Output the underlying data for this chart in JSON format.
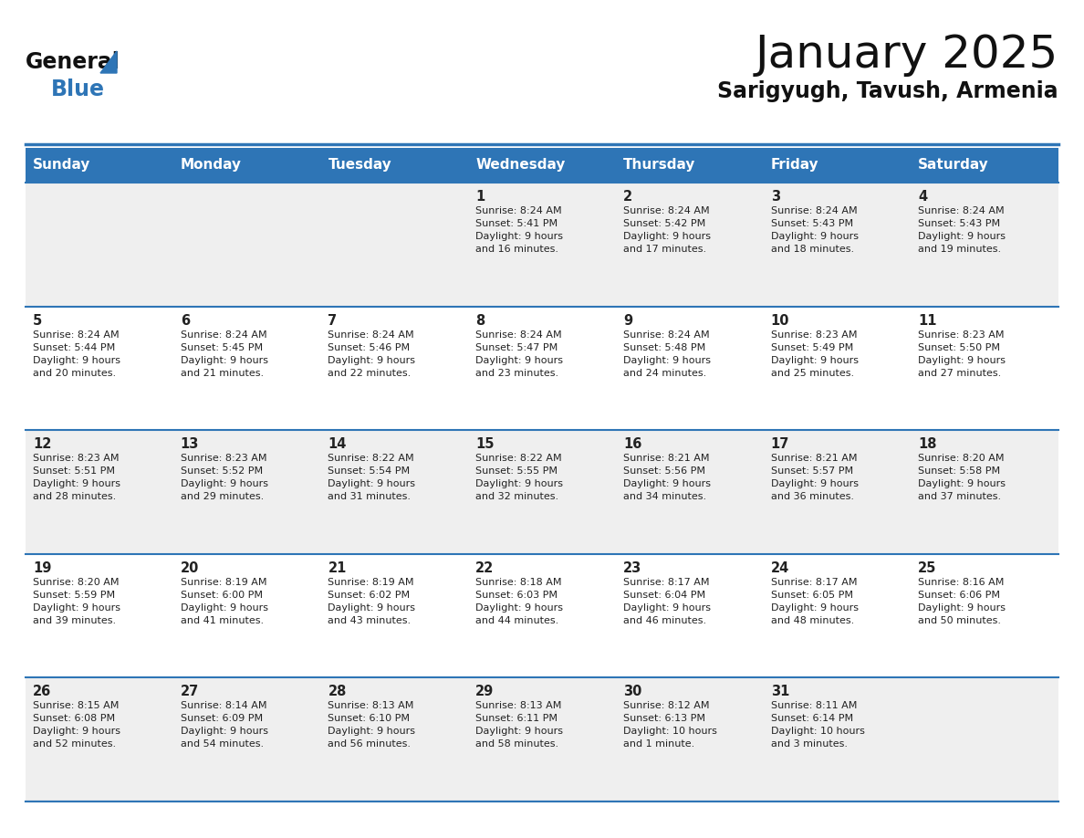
{
  "title": "January 2025",
  "subtitle": "Sarigyugh, Tavush, Armenia",
  "header_bg_color": "#2E75B6",
  "header_text_color": "#FFFFFF",
  "row_colors": [
    "#EFEFEF",
    "#FFFFFF"
  ],
  "text_color": "#222222",
  "day_headers": [
    "Sunday",
    "Monday",
    "Tuesday",
    "Wednesday",
    "Thursday",
    "Friday",
    "Saturday"
  ],
  "weeks": [
    [
      {
        "day": "",
        "info": ""
      },
      {
        "day": "",
        "info": ""
      },
      {
        "day": "",
        "info": ""
      },
      {
        "day": "1",
        "info": "Sunrise: 8:24 AM\nSunset: 5:41 PM\nDaylight: 9 hours\nand 16 minutes."
      },
      {
        "day": "2",
        "info": "Sunrise: 8:24 AM\nSunset: 5:42 PM\nDaylight: 9 hours\nand 17 minutes."
      },
      {
        "day": "3",
        "info": "Sunrise: 8:24 AM\nSunset: 5:43 PM\nDaylight: 9 hours\nand 18 minutes."
      },
      {
        "day": "4",
        "info": "Sunrise: 8:24 AM\nSunset: 5:43 PM\nDaylight: 9 hours\nand 19 minutes."
      }
    ],
    [
      {
        "day": "5",
        "info": "Sunrise: 8:24 AM\nSunset: 5:44 PM\nDaylight: 9 hours\nand 20 minutes."
      },
      {
        "day": "6",
        "info": "Sunrise: 8:24 AM\nSunset: 5:45 PM\nDaylight: 9 hours\nand 21 minutes."
      },
      {
        "day": "7",
        "info": "Sunrise: 8:24 AM\nSunset: 5:46 PM\nDaylight: 9 hours\nand 22 minutes."
      },
      {
        "day": "8",
        "info": "Sunrise: 8:24 AM\nSunset: 5:47 PM\nDaylight: 9 hours\nand 23 minutes."
      },
      {
        "day": "9",
        "info": "Sunrise: 8:24 AM\nSunset: 5:48 PM\nDaylight: 9 hours\nand 24 minutes."
      },
      {
        "day": "10",
        "info": "Sunrise: 8:23 AM\nSunset: 5:49 PM\nDaylight: 9 hours\nand 25 minutes."
      },
      {
        "day": "11",
        "info": "Sunrise: 8:23 AM\nSunset: 5:50 PM\nDaylight: 9 hours\nand 27 minutes."
      }
    ],
    [
      {
        "day": "12",
        "info": "Sunrise: 8:23 AM\nSunset: 5:51 PM\nDaylight: 9 hours\nand 28 minutes."
      },
      {
        "day": "13",
        "info": "Sunrise: 8:23 AM\nSunset: 5:52 PM\nDaylight: 9 hours\nand 29 minutes."
      },
      {
        "day": "14",
        "info": "Sunrise: 8:22 AM\nSunset: 5:54 PM\nDaylight: 9 hours\nand 31 minutes."
      },
      {
        "day": "15",
        "info": "Sunrise: 8:22 AM\nSunset: 5:55 PM\nDaylight: 9 hours\nand 32 minutes."
      },
      {
        "day": "16",
        "info": "Sunrise: 8:21 AM\nSunset: 5:56 PM\nDaylight: 9 hours\nand 34 minutes."
      },
      {
        "day": "17",
        "info": "Sunrise: 8:21 AM\nSunset: 5:57 PM\nDaylight: 9 hours\nand 36 minutes."
      },
      {
        "day": "18",
        "info": "Sunrise: 8:20 AM\nSunset: 5:58 PM\nDaylight: 9 hours\nand 37 minutes."
      }
    ],
    [
      {
        "day": "19",
        "info": "Sunrise: 8:20 AM\nSunset: 5:59 PM\nDaylight: 9 hours\nand 39 minutes."
      },
      {
        "day": "20",
        "info": "Sunrise: 8:19 AM\nSunset: 6:00 PM\nDaylight: 9 hours\nand 41 minutes."
      },
      {
        "day": "21",
        "info": "Sunrise: 8:19 AM\nSunset: 6:02 PM\nDaylight: 9 hours\nand 43 minutes."
      },
      {
        "day": "22",
        "info": "Sunrise: 8:18 AM\nSunset: 6:03 PM\nDaylight: 9 hours\nand 44 minutes."
      },
      {
        "day": "23",
        "info": "Sunrise: 8:17 AM\nSunset: 6:04 PM\nDaylight: 9 hours\nand 46 minutes."
      },
      {
        "day": "24",
        "info": "Sunrise: 8:17 AM\nSunset: 6:05 PM\nDaylight: 9 hours\nand 48 minutes."
      },
      {
        "day": "25",
        "info": "Sunrise: 8:16 AM\nSunset: 6:06 PM\nDaylight: 9 hours\nand 50 minutes."
      }
    ],
    [
      {
        "day": "26",
        "info": "Sunrise: 8:15 AM\nSunset: 6:08 PM\nDaylight: 9 hours\nand 52 minutes."
      },
      {
        "day": "27",
        "info": "Sunrise: 8:14 AM\nSunset: 6:09 PM\nDaylight: 9 hours\nand 54 minutes."
      },
      {
        "day": "28",
        "info": "Sunrise: 8:13 AM\nSunset: 6:10 PM\nDaylight: 9 hours\nand 56 minutes."
      },
      {
        "day": "29",
        "info": "Sunrise: 8:13 AM\nSunset: 6:11 PM\nDaylight: 9 hours\nand 58 minutes."
      },
      {
        "day": "30",
        "info": "Sunrise: 8:12 AM\nSunset: 6:13 PM\nDaylight: 10 hours\nand 1 minute."
      },
      {
        "day": "31",
        "info": "Sunrise: 8:11 AM\nSunset: 6:14 PM\nDaylight: 10 hours\nand 3 minutes."
      },
      {
        "day": "",
        "info": ""
      }
    ]
  ],
  "logo_text_general": "General",
  "logo_text_blue": "Blue",
  "logo_color_general": "#111111",
  "logo_color_blue": "#2E75B6",
  "logo_triangle_color": "#2E75B6",
  "divider_color": "#2E75B6",
  "line_color": "#2E75B6",
  "title_color": "#111111",
  "subtitle_color": "#111111"
}
